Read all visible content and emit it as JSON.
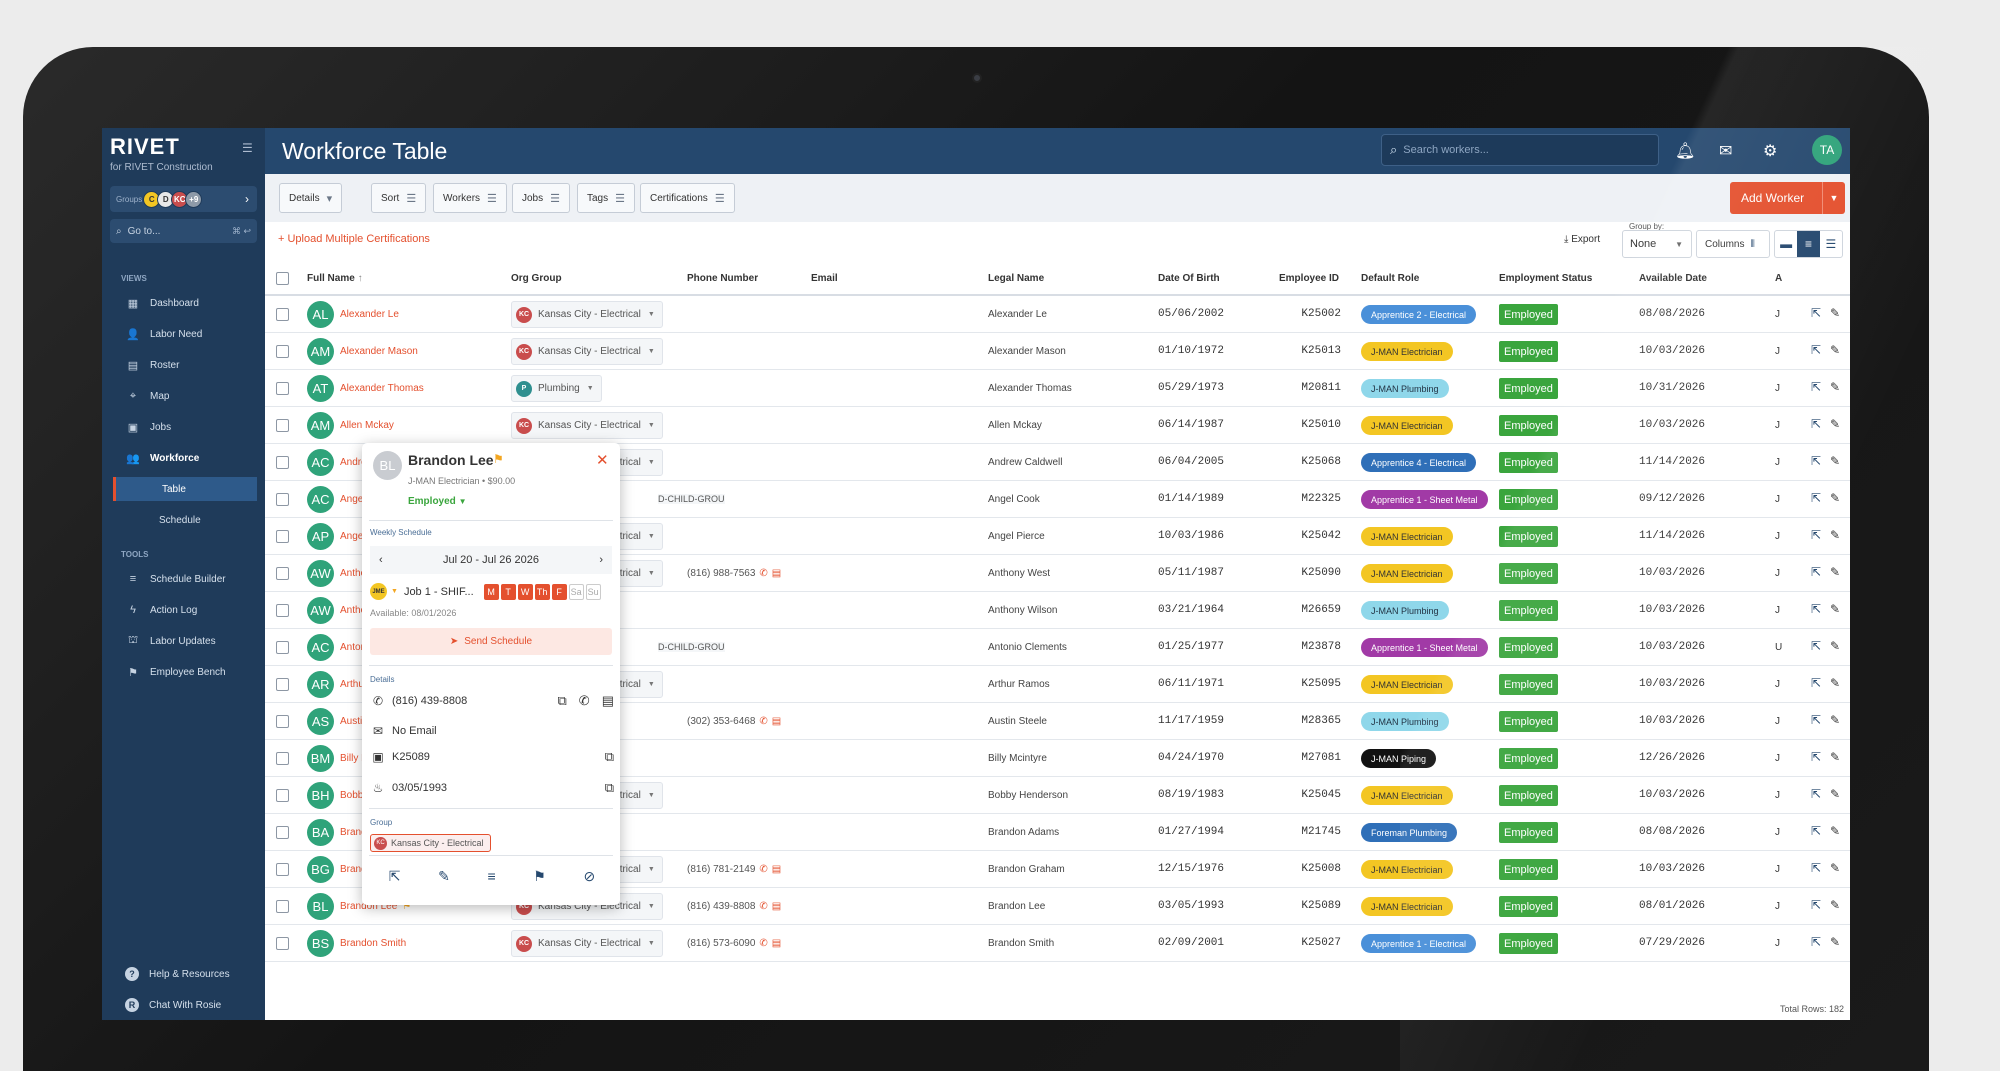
{
  "app": {
    "brand": "RIVET",
    "brand_sub": "for RIVET Construction",
    "page_title": "Workforce Table",
    "search_placeholder": "Search workers...",
    "user_initials": "TA"
  },
  "sidebar": {
    "groups_label": "Groups",
    "group_chips": [
      {
        "label": "C",
        "color": "#f3c623"
      },
      {
        "label": "D",
        "color": "#e8e8e8"
      },
      {
        "label": "KC",
        "color": "#c94d4d"
      },
      {
        "label": "+9",
        "color": "#8e9aa8"
      }
    ],
    "goto_label": "Go to...",
    "goto_shortcut": "⌘ ↩",
    "views_label": "VIEWS",
    "views": [
      {
        "label": "Dashboard",
        "icon": "dashboard-icon"
      },
      {
        "label": "Labor Need",
        "icon": "add-person-icon"
      },
      {
        "label": "Roster",
        "icon": "roster-icon"
      },
      {
        "label": "Map",
        "icon": "map-pin-icon"
      },
      {
        "label": "Jobs",
        "icon": "jobs-icon"
      },
      {
        "label": "Workforce",
        "icon": "workforce-icon"
      }
    ],
    "workforce_sub": [
      "Table",
      "Schedule"
    ],
    "tools_label": "TOOLS",
    "tools": [
      {
        "label": "Schedule Builder",
        "icon": "schedule-builder-icon"
      },
      {
        "label": "Action Log",
        "icon": "lightning-icon"
      },
      {
        "label": "Labor Updates",
        "icon": "labor-updates-icon"
      },
      {
        "label": "Employee Bench",
        "icon": "flag-icon"
      }
    ],
    "footer": [
      "Help & Resources",
      "Chat With Rosie"
    ]
  },
  "toolbar": {
    "details": "Details",
    "sort": "Sort",
    "workers": "Workers",
    "jobs": "Jobs",
    "tags": "Tags",
    "certifications": "Certifications",
    "add_worker": "Add Worker",
    "upload": "Upload Multiple Certifications",
    "export": "Export",
    "group_by_label": "Group by:",
    "group_by_value": "None",
    "columns": "Columns"
  },
  "table": {
    "headers": {
      "full_name": "Full Name",
      "org_group": "Org Group",
      "phone": "Phone Number",
      "email": "Email",
      "legal_name": "Legal Name",
      "dob": "Date Of Birth",
      "employee_id": "Employee ID",
      "default_role": "Default Role",
      "employment_status": "Employment Status",
      "available_date": "Available Date",
      "a": "A"
    },
    "rows": [
      {
        "initials": "AL",
        "name": "Alexander Le",
        "org": "Kansas City - Electrical",
        "org_chip": "KC",
        "phone": "",
        "legal": "Alexander Le",
        "dob": "05/06/2002",
        "eid": "K25002",
        "role": "Apprentice 2 - Electrical",
        "role_style": "blue-light",
        "status": "Employed",
        "avail": "08/08/2026",
        "a": "J"
      },
      {
        "initials": "AM",
        "name": "Alexander Mason",
        "org": "Kansas City - Electrical",
        "org_chip": "KC",
        "phone": "",
        "legal": "Alexander Mason",
        "dob": "01/10/1972",
        "eid": "K25013",
        "role": "J-MAN Electrician",
        "role_style": "yellow",
        "status": "Employed",
        "avail": "10/03/2026",
        "a": "J"
      },
      {
        "initials": "AT",
        "name": "Alexander Thomas",
        "org": "Plumbing",
        "org_chip": "P",
        "phone": "",
        "legal": "Alexander Thomas",
        "dob": "05/29/1973",
        "eid": "M20811",
        "role": "J-MAN Plumbing",
        "role_style": "cyan",
        "status": "Employed",
        "avail": "10/31/2026",
        "a": "J"
      },
      {
        "initials": "AM",
        "name": "Allen Mckay",
        "org": "Kansas City - Electrical",
        "org_chip": "KC",
        "phone": "",
        "legal": "Allen Mckay",
        "dob": "06/14/1987",
        "eid": "K25010",
        "role": "J-MAN Electrician",
        "role_style": "yellow",
        "status": "Employed",
        "avail": "10/03/2026",
        "a": "J"
      },
      {
        "initials": "AC",
        "name": "Andrew Caldwell",
        "org": "Kansas City - Electrical",
        "org_chip": "KC",
        "phone": "",
        "legal": "Andrew Caldwell",
        "dob": "06/04/2005",
        "eid": "K25068",
        "role": "Apprentice 4 - Electrical",
        "role_style": "blue",
        "status": "Employed",
        "avail": "11/14/2026",
        "a": "J"
      },
      {
        "initials": "AC",
        "name": "Angel Cook",
        "org": "",
        "org_chip": "",
        "child": "D-CHILD-GROU",
        "phone": "",
        "legal": "Angel Cook",
        "dob": "01/14/1989",
        "eid": "M22325",
        "role": "Apprentice 1 - Sheet Metal",
        "role_style": "purple",
        "status": "Employed",
        "avail": "09/12/2026",
        "a": "J"
      },
      {
        "initials": "AP",
        "name": "Angel Pierce",
        "org": "Kansas City - Electrical",
        "org_chip": "KC",
        "phone": "",
        "legal": "Angel Pierce",
        "dob": "10/03/1986",
        "eid": "K25042",
        "role": "J-MAN Electrician",
        "role_style": "yellow",
        "status": "Employed",
        "avail": "11/14/2026",
        "a": "J"
      },
      {
        "initials": "AW",
        "name": "Anthony West",
        "org": "Kansas City - Electrical",
        "org_chip": "KC",
        "phone": "(816) 988-7563",
        "legal": "Anthony West",
        "dob": "05/11/1987",
        "eid": "K25090",
        "role": "J-MAN Electrician",
        "role_style": "yellow",
        "status": "Employed",
        "avail": "10/03/2026",
        "a": "J"
      },
      {
        "initials": "AW",
        "name": "Anthony Wilson",
        "org": "",
        "org_chip": "",
        "phone": "",
        "legal": "Anthony Wilson",
        "dob": "03/21/1964",
        "eid": "M26659",
        "role": "J-MAN Plumbing",
        "role_style": "cyan",
        "status": "Employed",
        "avail": "10/03/2026",
        "a": "J"
      },
      {
        "initials": "AC",
        "name": "Antonio Clements",
        "org": "",
        "org_chip": "",
        "child": "D-CHILD-GROU",
        "phone": "",
        "legal": "Antonio Clements",
        "dob": "01/25/1977",
        "eid": "M23878",
        "role": "Apprentice 1 - Sheet Metal",
        "role_style": "purple",
        "status": "Employed",
        "avail": "10/03/2026",
        "a": "U"
      },
      {
        "initials": "AR",
        "name": "Arthur Ramos",
        "org": "Kansas City - Electrical",
        "org_chip": "KC",
        "phone": "",
        "legal": "Arthur Ramos",
        "dob": "06/11/1971",
        "eid": "K25095",
        "role": "J-MAN Electrician",
        "role_style": "yellow",
        "status": "Employed",
        "avail": "10/03/2026",
        "a": "J"
      },
      {
        "initials": "AS",
        "name": "Austin Steele",
        "org": "",
        "org_chip": "",
        "phone": "(302) 353-6468",
        "legal": "Austin Steele",
        "dob": "11/17/1959",
        "eid": "M28365",
        "role": "J-MAN Plumbing",
        "role_style": "cyan",
        "status": "Employed",
        "avail": "10/03/2026",
        "a": "J"
      },
      {
        "initials": "BM",
        "name": "Billy Mcintyre",
        "org": "",
        "org_chip": "",
        "phone": "",
        "legal": "Billy Mcintyre",
        "dob": "04/24/1970",
        "eid": "M27081",
        "role": "J-MAN Piping",
        "role_style": "black",
        "status": "Employed",
        "avail": "12/26/2026",
        "a": "J"
      },
      {
        "initials": "BH",
        "name": "Bobby Henderson",
        "org": "Kansas City - Electrical",
        "org_chip": "KC",
        "phone": "",
        "legal": "Bobby Henderson",
        "dob": "08/19/1983",
        "eid": "K25045",
        "role": "J-MAN Electrician",
        "role_style": "yellow",
        "status": "Employed",
        "avail": "10/03/2026",
        "a": "J"
      },
      {
        "initials": "BA",
        "name": "Brandon Adams",
        "org": "",
        "org_chip": "",
        "phone": "",
        "legal": "Brandon Adams",
        "dob": "01/27/1994",
        "eid": "M21745",
        "role": "Foreman Plumbing",
        "role_style": "blue",
        "status": "Employed",
        "avail": "08/08/2026",
        "a": "J"
      },
      {
        "initials": "BG",
        "name": "Brandon Graham",
        "org": "Kansas City - Electrical",
        "org_chip": "KC",
        "phone": "(816) 781-2149",
        "legal": "Brandon Graham",
        "dob": "12/15/1976",
        "eid": "K25008",
        "role": "J-MAN Electrician",
        "role_style": "yellow",
        "status": "Employed",
        "avail": "10/03/2026",
        "a": "J"
      },
      {
        "initials": "BL",
        "name": "Brandon Lee",
        "flag": true,
        "org": "Kansas City - Electrical",
        "org_chip": "KC",
        "phone": "(816) 439-8808",
        "legal": "Brandon Lee",
        "dob": "03/05/1993",
        "eid": "K25089",
        "role": "J-MAN Electrician",
        "role_style": "yellow",
        "status": "Employed",
        "avail": "08/01/2026",
        "a": "J"
      },
      {
        "initials": "BS",
        "name": "Brandon Smith",
        "org": "Kansas City - Electrical",
        "org_chip": "KC",
        "phone": "(816) 573-6090",
        "legal": "Brandon Smith",
        "dob": "02/09/2001",
        "eid": "K25027",
        "role": "Apprentice 1 - Electrical",
        "role_style": "blue-light",
        "status": "Employed",
        "avail": "07/29/2026",
        "a": "J"
      }
    ],
    "total_rows": "Total Rows: 182"
  },
  "popup": {
    "initials": "BL",
    "name": "Brandon Lee",
    "role_line": "J-MAN Electrician • $90.00",
    "status": "Employed",
    "weekly_schedule_label": "Weekly Schedule",
    "week_range": "Jul 20 - Jul 26 2026",
    "job_chip": "JME",
    "job_label": "Job 1 - SHIF...",
    "days": [
      "M",
      "T",
      "W",
      "Th",
      "F",
      "Sa",
      "Su"
    ],
    "available": "Available: 08/01/2026",
    "send_schedule": "Send Schedule",
    "details_label": "Details",
    "phone": "(816) 439-8808",
    "email": "No Email",
    "employee_id": "K25089",
    "dob": "03/05/1993",
    "group_label": "Group",
    "group_value": "Kansas City - Electrical",
    "group_chip": "KC"
  },
  "colors": {
    "accent": "#e4502e",
    "navy": "#25486e",
    "sidebar": "#1f3b5a",
    "employed": "#3aa53d"
  }
}
